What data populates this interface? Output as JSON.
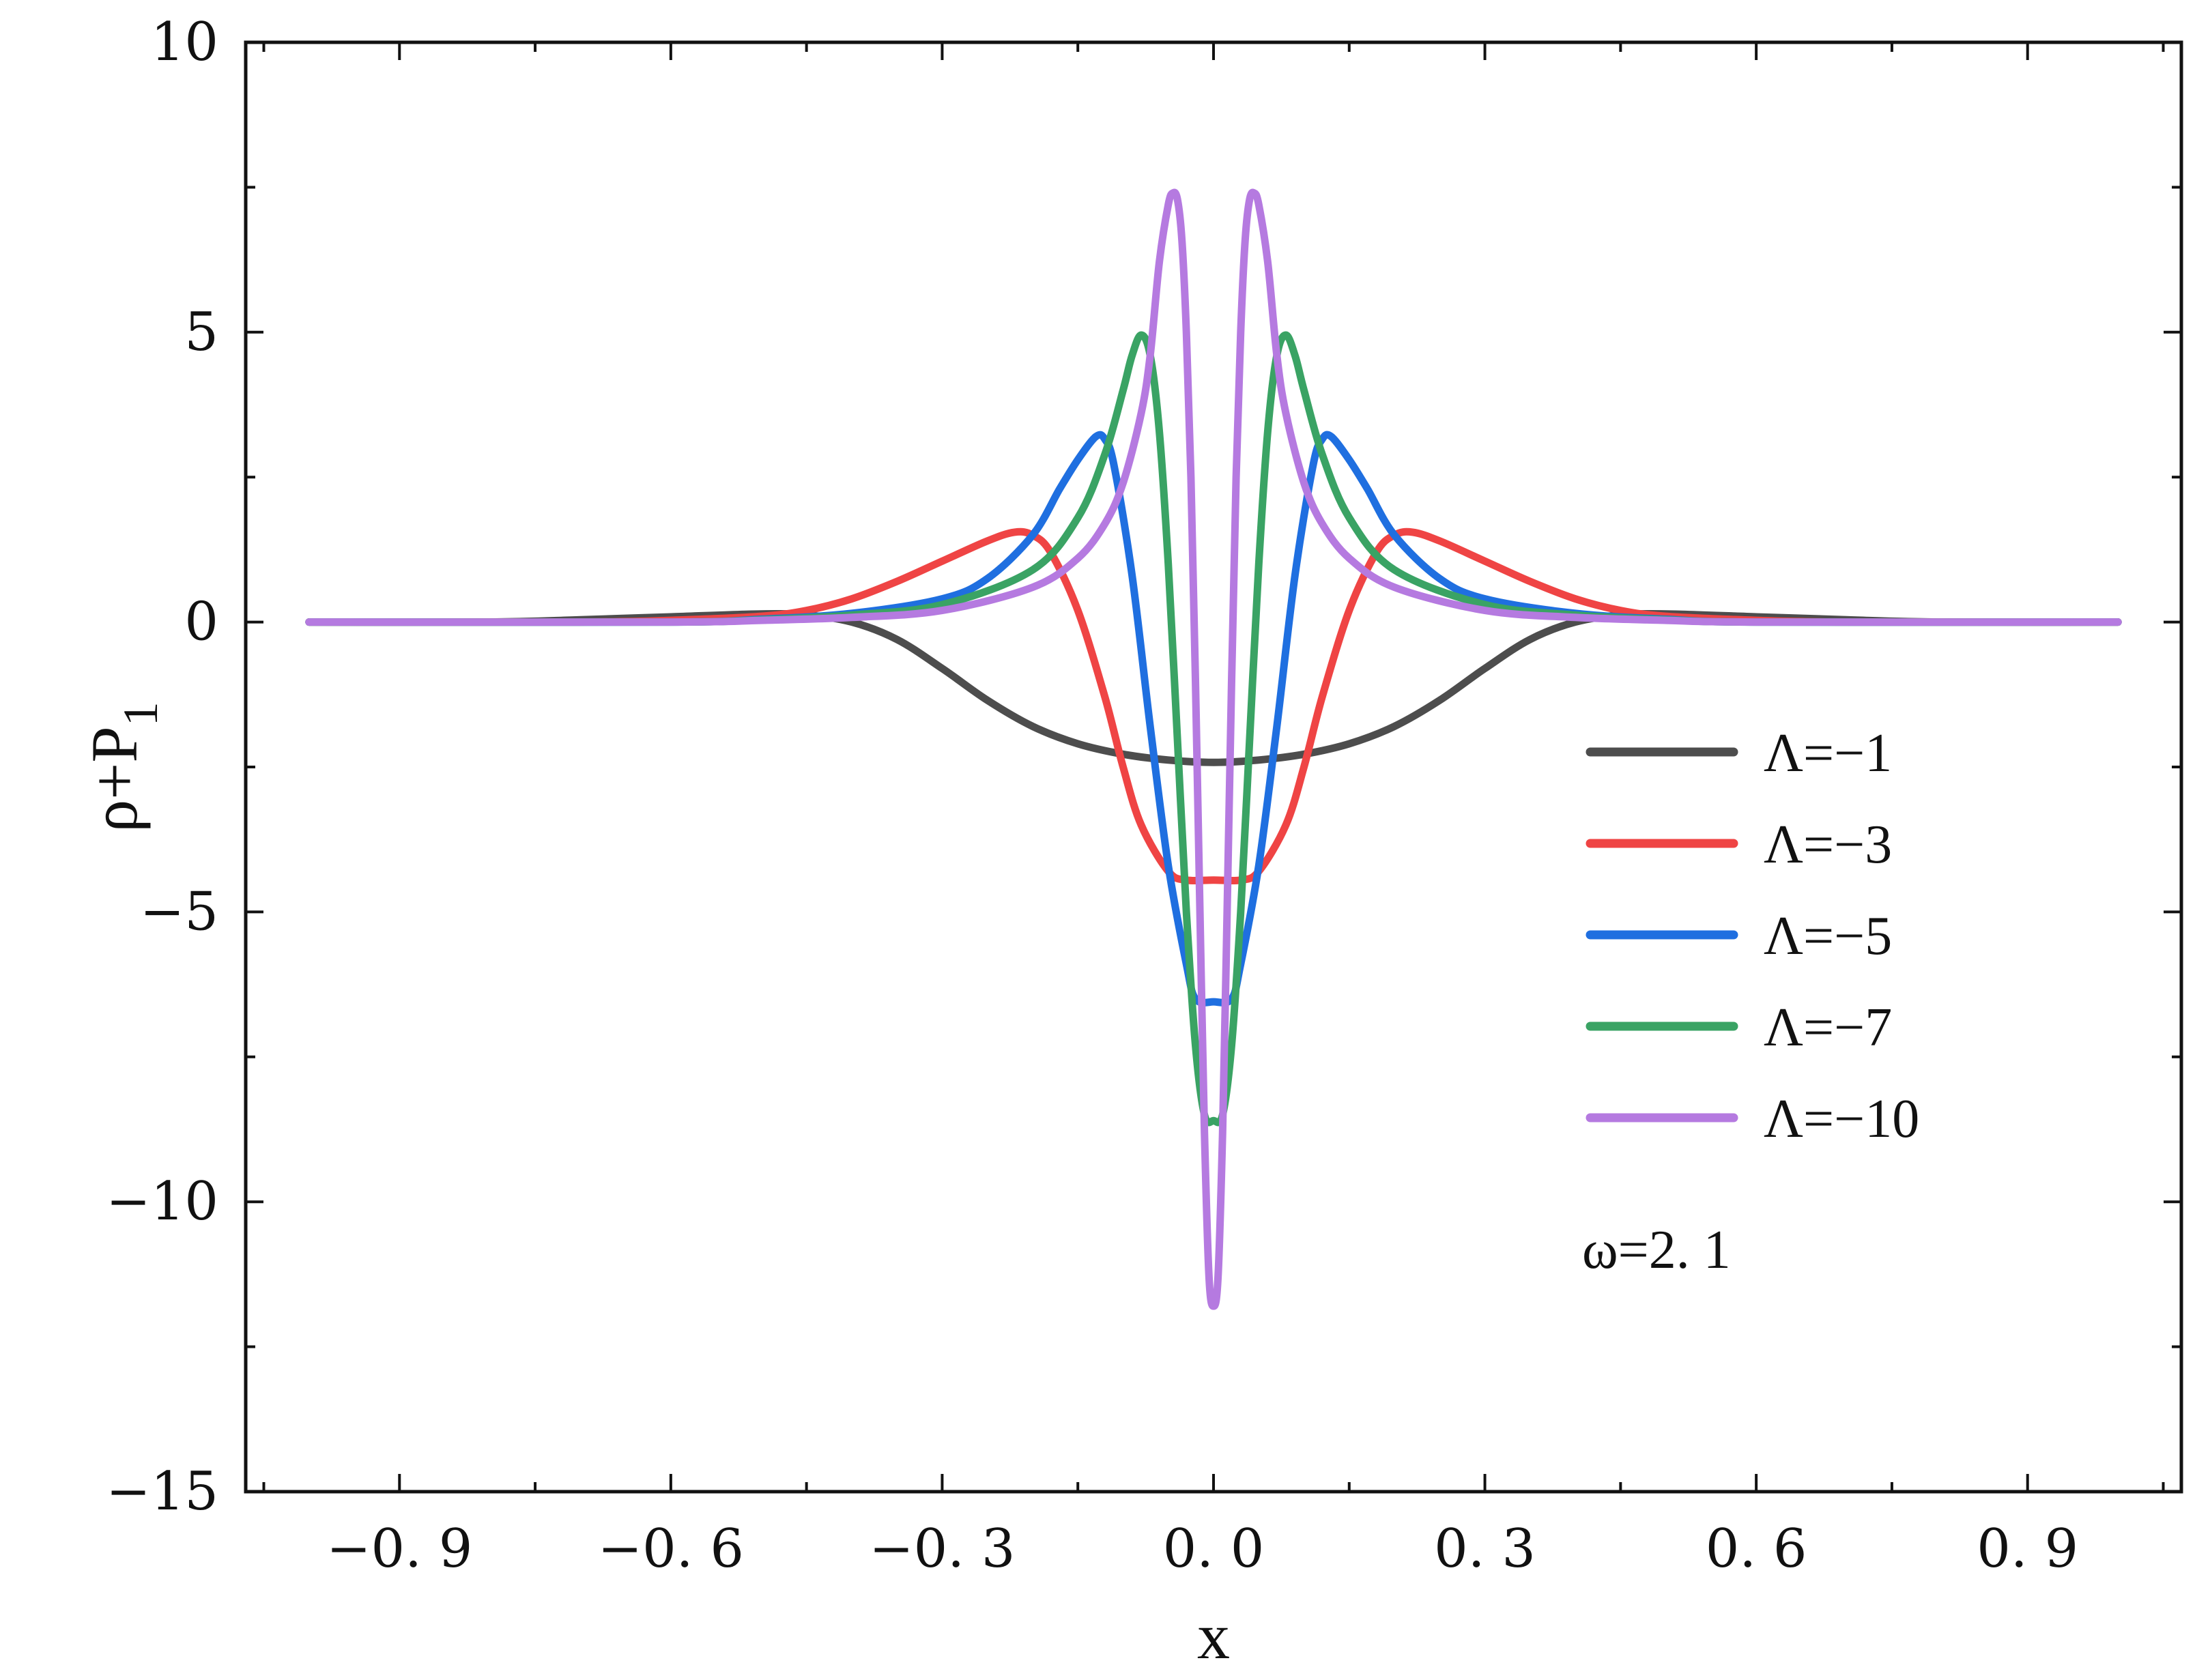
{
  "chart_data": {
    "type": "line",
    "xlabel": "x",
    "ylabel": "ρ+P",
    "ylabel_subscript": "1",
    "xlim": [
      -1.07,
      1.07
    ],
    "ylim": [
      -15,
      10
    ],
    "x_ticks": [
      -0.9,
      -0.6,
      -0.3,
      0.0,
      0.3,
      0.6,
      0.9
    ],
    "x_tick_labels": [
      "−0. 9",
      "−0. 6",
      "−0. 3",
      "0. 0",
      "0. 3",
      "0. 6",
      "0. 9"
    ],
    "x_minor_ticks": [
      -1.05,
      -0.75,
      -0.45,
      -0.15,
      0.15,
      0.45,
      0.75,
      1.05
    ],
    "y_ticks": [
      -15,
      -10,
      -5,
      0,
      5,
      10
    ],
    "y_tick_labels": [
      "−15",
      "−10",
      "−5",
      "0",
      "5",
      "10"
    ],
    "y_minor_ticks": [
      -12.5,
      -7.5,
      -2.5,
      2.5,
      7.5
    ],
    "grid": false,
    "legend_position": "right",
    "annotation": "ω=2. 1",
    "series": [
      {
        "name": "Λ=−1",
        "color": "#4d4d4d",
        "x": [
          -1.0,
          -0.8,
          -0.7,
          -0.6,
          -0.5,
          -0.45,
          -0.4,
          -0.35,
          -0.3,
          -0.25,
          -0.2,
          -0.15,
          -0.1,
          -0.05,
          0.0,
          0.05,
          0.1,
          0.15,
          0.2,
          0.25,
          0.3,
          0.35,
          0.4,
          0.45,
          0.5,
          0.6,
          0.7,
          0.8,
          1.0
        ],
        "y": [
          0.0,
          0.0,
          0.04,
          0.09,
          0.14,
          0.12,
          0.0,
          -0.3,
          -0.8,
          -1.35,
          -1.8,
          -2.1,
          -2.28,
          -2.38,
          -2.42,
          -2.38,
          -2.28,
          -2.1,
          -1.8,
          -1.35,
          -0.8,
          -0.3,
          0.0,
          0.12,
          0.14,
          0.09,
          0.04,
          0.0,
          0.0
        ]
      },
      {
        "name": "Λ=−3",
        "color": "#ef4444",
        "x": [
          -1.0,
          -0.7,
          -0.6,
          -0.5,
          -0.45,
          -0.4,
          -0.35,
          -0.3,
          -0.25,
          -0.22,
          -0.2,
          -0.18,
          -0.15,
          -0.12,
          -0.1,
          -0.08,
          -0.05,
          -0.03,
          0.0,
          0.03,
          0.05,
          0.08,
          0.1,
          0.12,
          0.15,
          0.18,
          0.2,
          0.22,
          0.25,
          0.3,
          0.35,
          0.4,
          0.45,
          0.5,
          0.6,
          0.7,
          1.0
        ],
        "y": [
          0.0,
          0.0,
          0.03,
          0.1,
          0.2,
          0.4,
          0.7,
          1.05,
          1.4,
          1.55,
          1.5,
          1.2,
          0.2,
          -1.3,
          -2.5,
          -3.5,
          -4.3,
          -4.45,
          -4.45,
          -4.45,
          -4.3,
          -3.5,
          -2.5,
          -1.3,
          0.2,
          1.2,
          1.5,
          1.55,
          1.4,
          1.05,
          0.7,
          0.4,
          0.2,
          0.1,
          0.03,
          0.0,
          0.0
        ]
      },
      {
        "name": "Λ=−5",
        "color": "#1f6fe0",
        "x": [
          -1.0,
          -0.6,
          -0.5,
          -0.4,
          -0.3,
          -0.25,
          -0.2,
          -0.17,
          -0.15,
          -0.13,
          -0.12,
          -0.11,
          -0.09,
          -0.07,
          -0.05,
          -0.03,
          -0.02,
          0.0,
          0.02,
          0.03,
          0.05,
          0.07,
          0.09,
          0.11,
          0.12,
          0.13,
          0.15,
          0.17,
          0.2,
          0.25,
          0.3,
          0.4,
          0.5,
          0.6,
          1.0
        ],
        "y": [
          0.0,
          0.0,
          0.05,
          0.15,
          0.4,
          0.75,
          1.5,
          2.3,
          2.8,
          3.2,
          3.15,
          2.7,
          0.8,
          -1.8,
          -4.2,
          -5.9,
          -6.5,
          -6.55,
          -6.5,
          -5.9,
          -4.2,
          -1.8,
          0.8,
          2.7,
          3.15,
          3.2,
          2.8,
          2.3,
          1.5,
          0.75,
          0.4,
          0.15,
          0.05,
          0.0,
          0.0
        ]
      },
      {
        "name": "Λ=−7",
        "color": "#3aa364",
        "x": [
          -1.0,
          -0.6,
          -0.5,
          -0.4,
          -0.3,
          -0.2,
          -0.15,
          -0.12,
          -0.1,
          -0.09,
          -0.08,
          -0.07,
          -0.06,
          -0.05,
          -0.04,
          -0.03,
          -0.02,
          -0.01,
          0.0,
          0.01,
          0.02,
          0.03,
          0.04,
          0.05,
          0.06,
          0.07,
          0.08,
          0.09,
          0.1,
          0.12,
          0.15,
          0.2,
          0.3,
          0.4,
          0.5,
          0.6,
          1.0
        ],
        "y": [
          0.0,
          0.0,
          0.04,
          0.12,
          0.3,
          0.9,
          1.8,
          2.9,
          4.0,
          4.6,
          4.95,
          4.6,
          3.3,
          1.0,
          -2.0,
          -5.0,
          -7.3,
          -8.5,
          -8.6,
          -8.5,
          -7.3,
          -5.0,
          -2.0,
          1.0,
          3.3,
          4.6,
          4.95,
          4.6,
          4.0,
          2.9,
          1.8,
          0.9,
          0.3,
          0.12,
          0.04,
          0.0,
          0.0
        ]
      },
      {
        "name": "Λ=−10",
        "color": "#b57ae0",
        "x": [
          -1.0,
          -0.6,
          -0.5,
          -0.4,
          -0.3,
          -0.2,
          -0.15,
          -0.12,
          -0.1,
          -0.08,
          -0.07,
          -0.06,
          -0.05,
          -0.045,
          -0.04,
          -0.035,
          -0.03,
          -0.025,
          -0.02,
          -0.015,
          -0.01,
          -0.005,
          0.0,
          0.005,
          0.01,
          0.015,
          0.02,
          0.025,
          0.03,
          0.035,
          0.04,
          0.045,
          0.05,
          0.06,
          0.07,
          0.08,
          0.1,
          0.12,
          0.15,
          0.2,
          0.3,
          0.4,
          0.5,
          0.6,
          1.0
        ],
        "y": [
          0.0,
          0.0,
          0.03,
          0.08,
          0.2,
          0.6,
          1.1,
          1.7,
          2.4,
          3.6,
          4.6,
          6.2,
          7.2,
          7.4,
          7.3,
          6.6,
          5.0,
          2.5,
          -1.0,
          -5.0,
          -8.8,
          -11.3,
          -11.8,
          -11.3,
          -8.8,
          -5.0,
          -1.0,
          2.5,
          5.0,
          6.6,
          7.3,
          7.4,
          7.2,
          6.2,
          4.6,
          3.6,
          2.4,
          1.7,
          1.1,
          0.6,
          0.2,
          0.08,
          0.03,
          0.0,
          0.0
        ]
      }
    ]
  }
}
